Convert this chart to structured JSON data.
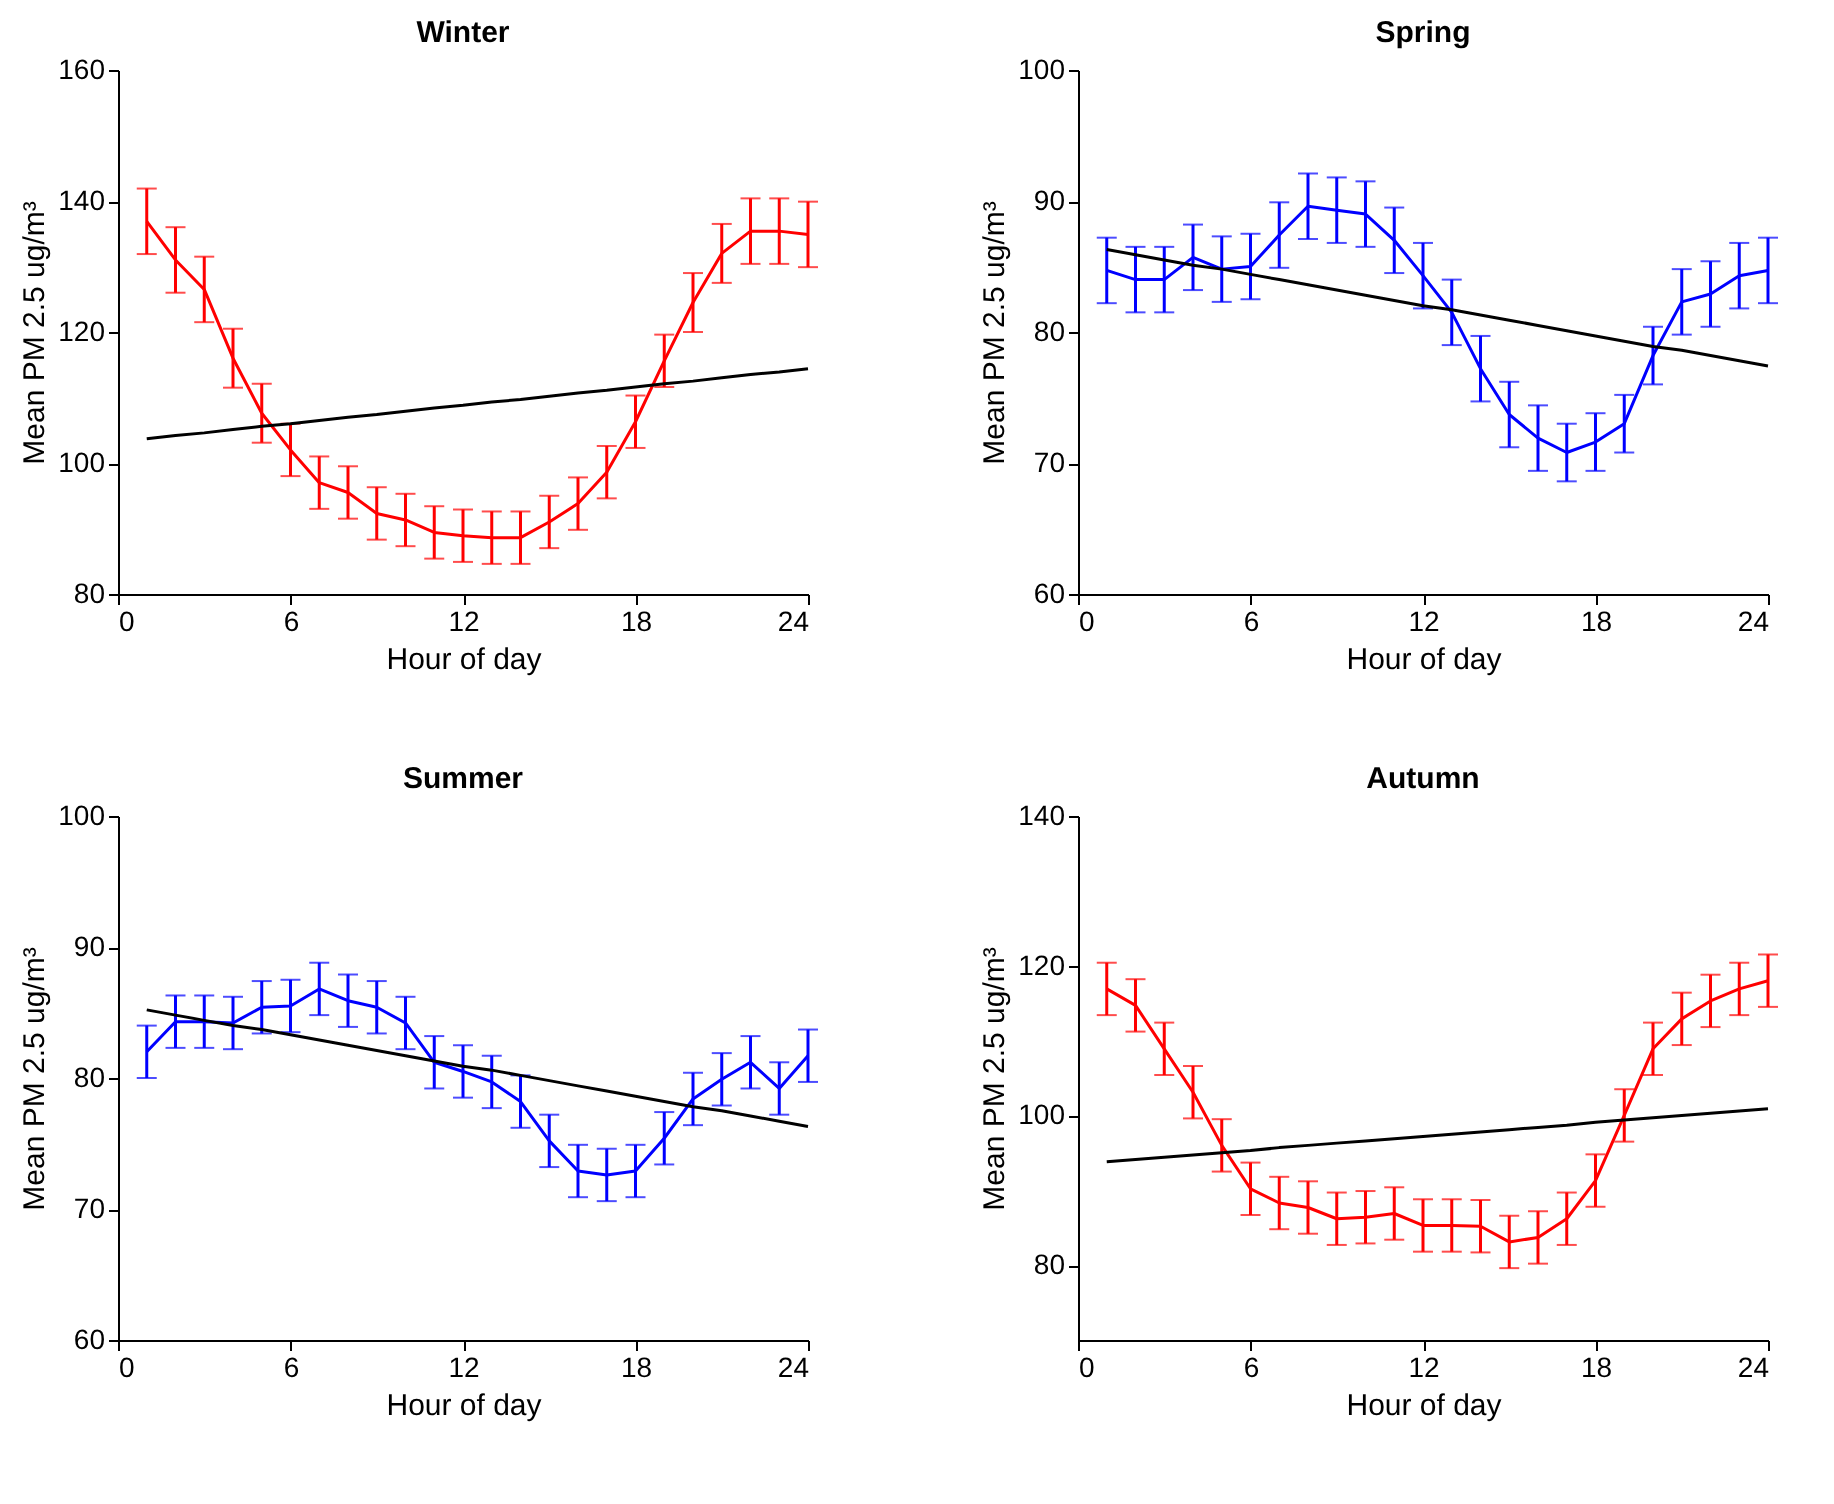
{
  "chart_data": [
    {
      "type": "line",
      "title": "Winter",
      "xlabel": "Hour of day",
      "ylabel": "Mean PM 2.5 ug/m³",
      "x": [
        1,
        2,
        3,
        4,
        5,
        6,
        7,
        8,
        9,
        10,
        11,
        12,
        13,
        14,
        15,
        16,
        17,
        18,
        19,
        20,
        21,
        22,
        23,
        24
      ],
      "xlim": [
        0,
        24
      ],
      "xticks": [
        0,
        6,
        12,
        18,
        24
      ],
      "ylim": [
        80,
        160
      ],
      "yticks": [
        80,
        100,
        120,
        140,
        160
      ],
      "grid": false,
      "series": [
        {
          "color": "#ff0000",
          "values": [
            136.9,
            131,
            126.5,
            116,
            107.6,
            102,
            97,
            95.5,
            92.3,
            91.3,
            89.4,
            88.9,
            88.6,
            88.6,
            91,
            93.8,
            98.6,
            106.3,
            115.6,
            124.5,
            132,
            135.4,
            135.4,
            134.9
          ],
          "errors": [
            5,
            5,
            5,
            4.5,
            4.5,
            4,
            4,
            4,
            4,
            4,
            4,
            4,
            4,
            4,
            4,
            4,
            4,
            4,
            4,
            4.5,
            4.5,
            5,
            5,
            5
          ]
        },
        {
          "type": "line",
          "color": "#000000",
          "values": [
            103.7,
            104.2,
            104.6,
            105.1,
            105.6,
            106.0,
            106.5,
            107.0,
            107.4,
            107.9,
            108.4,
            108.8,
            109.3,
            109.7,
            110.2,
            110.7,
            111.1,
            111.6,
            112.1,
            112.5,
            113.0,
            113.5,
            113.9,
            114.4
          ]
        }
      ]
    },
    {
      "type": "line",
      "title": "Spring",
      "xlabel": "Hour of day",
      "ylabel": "Mean PM 2.5 ug/m³",
      "x": [
        1,
        2,
        3,
        4,
        5,
        6,
        7,
        8,
        9,
        10,
        11,
        12,
        13,
        14,
        15,
        16,
        17,
        18,
        19,
        20,
        21,
        22,
        23,
        24
      ],
      "xlim": [
        0,
        24
      ],
      "xticks": [
        0,
        6,
        12,
        18,
        24
      ],
      "ylim": [
        60,
        100
      ],
      "yticks": [
        60,
        70,
        80,
        90,
        100
      ],
      "grid": false,
      "series": [
        {
          "color": "#0000ff",
          "values": [
            84.7,
            84,
            84,
            85.7,
            84.8,
            85,
            87.4,
            89.6,
            89.3,
            89,
            87,
            84.3,
            81.5,
            77.2,
            73.7,
            71.9,
            70.8,
            71.6,
            73,
            78.2,
            82.3,
            82.9,
            84.3,
            84.7
          ],
          "errors": [
            2.5,
            2.5,
            2.5,
            2.5,
            2.5,
            2.5,
            2.5,
            2.5,
            2.5,
            2.5,
            2.5,
            2.5,
            2.5,
            2.5,
            2.5,
            2.5,
            2.2,
            2.2,
            2.2,
            2.2,
            2.5,
            2.5,
            2.5,
            2.5
          ]
        },
        {
          "type": "line",
          "color": "#000000",
          "values": [
            86.3,
            85.9,
            85.5,
            85.1,
            84.8,
            84.4,
            84.0,
            83.6,
            83.2,
            82.8,
            82.4,
            82.0,
            81.7,
            81.3,
            80.9,
            80.5,
            80.1,
            79.7,
            79.3,
            78.9,
            78.6,
            78.2,
            77.8,
            77.4
          ]
        }
      ]
    },
    {
      "type": "line",
      "title": "Summer",
      "xlabel": "Hour of day",
      "ylabel": "Mean PM 2.5 ug/m³",
      "x": [
        1,
        2,
        3,
        4,
        5,
        6,
        7,
        8,
        9,
        10,
        11,
        12,
        13,
        14,
        15,
        16,
        17,
        18,
        19,
        20,
        21,
        22,
        23,
        24
      ],
      "xlim": [
        0,
        24
      ],
      "xticks": [
        0,
        6,
        12,
        18,
        24
      ],
      "ylim": [
        60,
        100
      ],
      "yticks": [
        60,
        70,
        80,
        90,
        100
      ],
      "grid": false,
      "series": [
        {
          "color": "#0000ff",
          "values": [
            82,
            84.3,
            84.3,
            84.2,
            85.4,
            85.5,
            86.8,
            85.9,
            85.4,
            84.2,
            81.2,
            80.5,
            79.7,
            78.2,
            75.2,
            72.9,
            72.6,
            72.9,
            75.4,
            78.4,
            79.9,
            81.2,
            79.2,
            81.7
          ],
          "errors": [
            2,
            2,
            2,
            2,
            2,
            2,
            2,
            2,
            2,
            2,
            2,
            2,
            2,
            2,
            2,
            2,
            2,
            2,
            2,
            2,
            2,
            2,
            2,
            2
          ]
        },
        {
          "type": "line",
          "color": "#000000",
          "values": [
            85.2,
            84.8,
            84.4,
            84.0,
            83.7,
            83.3,
            82.9,
            82.5,
            82.1,
            81.7,
            81.3,
            80.9,
            80.6,
            80.2,
            79.8,
            79.4,
            79.0,
            78.6,
            78.2,
            77.8,
            77.5,
            77.1,
            76.7,
            76.3
          ]
        }
      ]
    },
    {
      "type": "line",
      "title": "Autumn",
      "xlabel": "Hour of day",
      "ylabel": "Mean PM 2.5 ug/m³",
      "x": [
        1,
        2,
        3,
        4,
        5,
        6,
        7,
        8,
        9,
        10,
        11,
        12,
        13,
        14,
        15,
        16,
        17,
        18,
        19,
        20,
        21,
        22,
        23,
        24
      ],
      "xlim": [
        0,
        24
      ],
      "xticks": [
        0,
        6,
        12,
        18,
        24
      ],
      "ylim": [
        70,
        140
      ],
      "yticks": [
        80,
        100,
        120,
        140
      ],
      "grid": false,
      "series": [
        {
          "color": "#ff0000",
          "values": [
            116.9,
            114.7,
            108.9,
            103.1,
            96,
            90.2,
            88.3,
            87.7,
            86.2,
            86.4,
            86.9,
            85.3,
            85.3,
            85.2,
            83.1,
            83.7,
            86.2,
            91.3,
            100,
            108.9,
            112.9,
            115.3,
            116.9,
            118
          ],
          "errors": [
            3.5,
            3.5,
            3.5,
            3.5,
            3.5,
            3.5,
            3.5,
            3.5,
            3.5,
            3.5,
            3.5,
            3.5,
            3.5,
            3.5,
            3.5,
            3.5,
            3.5,
            3.5,
            3.5,
            3.5,
            3.5,
            3.5,
            3.5,
            3.5
          ]
        },
        {
          "type": "line",
          "color": "#000000",
          "values": [
            93.8,
            94.1,
            94.4,
            94.7,
            95.0,
            95.3,
            95.7,
            96.0,
            96.3,
            96.6,
            96.9,
            97.2,
            97.5,
            97.8,
            98.1,
            98.4,
            98.7,
            99.1,
            99.4,
            99.7,
            100.0,
            100.3,
            100.6,
            100.9
          ]
        }
      ]
    }
  ]
}
